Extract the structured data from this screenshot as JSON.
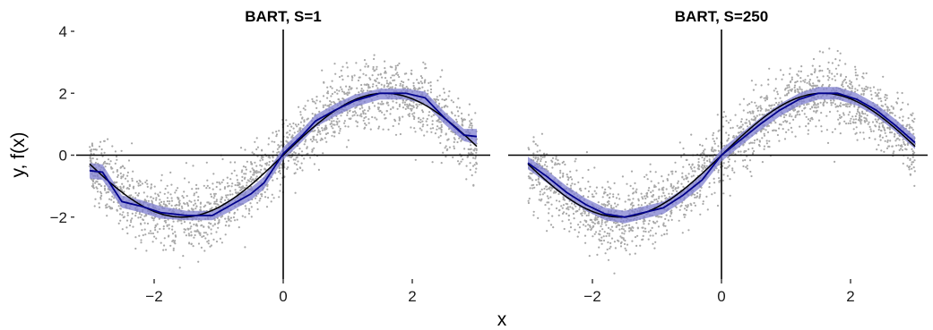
{
  "chart_data": [
    {
      "type": "scatter",
      "title": "BART, S=1",
      "xlabel": "x",
      "ylabel": "y, f(x)",
      "xlim": [
        -3,
        3
      ],
      "ylim": [
        -4,
        4
      ],
      "xticks": [
        -2,
        0,
        2
      ],
      "yticks": [
        -2,
        0,
        2,
        4
      ],
      "xtick_labels": [
        "−2",
        "0",
        "2"
      ],
      "ytick_labels": [
        "−2",
        "0",
        "2",
        "4"
      ],
      "grid": false,
      "reference_lines": {
        "x": 0,
        "y": 0
      },
      "colors": {
        "points": "#a8a8a8",
        "band": "#7f7fd0",
        "fit": "#00008b",
        "truth": "#000000",
        "axes": "#000000"
      },
      "series": [
        {
          "kind": "points",
          "x_range": [
            -3,
            3
          ],
          "approx_count": 2000,
          "noise_sd": 0.5,
          "centered_on": "sin(x)"
        },
        {
          "kind": "true-function",
          "formula": "sin(x)",
          "x": [
            -3,
            -2,
            -1,
            0,
            1,
            2,
            3
          ],
          "y": [
            -0.14,
            -0.91,
            -0.84,
            0,
            0.84,
            0.91,
            0.14
          ]
        },
        {
          "kind": "fit",
          "x": [
            -3,
            -2.8,
            -2.5,
            -2.2,
            -1.9,
            -1.5,
            -1.1,
            -0.8,
            -0.5,
            -0.3,
            0,
            0.3,
            0.5,
            0.8,
            1.1,
            1.5,
            1.9,
            2.2,
            2.5,
            2.8,
            3
          ],
          "y": [
            -0.5,
            -0.55,
            -1.5,
            -1.65,
            -1.85,
            -1.95,
            -1.95,
            -1.6,
            -1.25,
            -0.9,
            0.05,
            0.65,
            1.1,
            1.45,
            1.75,
            2.0,
            2.0,
            1.85,
            1.2,
            0.65,
            0.6
          ]
        },
        {
          "kind": "band",
          "x": [
            -3,
            -2.8,
            -2.5,
            -2.2,
            -1.9,
            -1.5,
            -1.1,
            -0.8,
            -0.5,
            -0.3,
            0,
            0.3,
            0.5,
            0.8,
            1.1,
            1.5,
            1.9,
            2.2,
            2.5,
            2.8,
            3
          ],
          "lower": [
            -0.75,
            -0.8,
            -1.7,
            -1.85,
            -2.05,
            -2.1,
            -2.1,
            -1.8,
            -1.45,
            -1.1,
            -0.15,
            0.45,
            0.9,
            1.25,
            1.55,
            1.8,
            1.8,
            1.65,
            1.0,
            0.45,
            0.35
          ],
          "upper": [
            -0.25,
            -0.3,
            -1.3,
            -1.45,
            -1.65,
            -1.8,
            -1.8,
            -1.4,
            -1.05,
            -0.7,
            0.25,
            0.85,
            1.3,
            1.65,
            1.95,
            2.15,
            2.15,
            2.05,
            1.4,
            0.85,
            0.85
          ]
        }
      ]
    },
    {
      "type": "scatter",
      "title": "BART, S=250",
      "xlabel": "x",
      "ylabel": "y, f(x)",
      "xlim": [
        -3,
        3
      ],
      "ylim": [
        -4,
        4
      ],
      "xticks": [
        -2,
        0,
        2
      ],
      "yticks": [
        -2,
        0,
        2,
        4
      ],
      "xtick_labels": [
        "−2",
        "0",
        "2"
      ],
      "ytick_labels": [
        "−2",
        "0",
        "2",
        "4"
      ],
      "grid": false,
      "reference_lines": {
        "x": 0,
        "y": 0
      },
      "colors": {
        "points": "#a8a8a8",
        "band": "#7f7fd0",
        "fit": "#00008b",
        "truth": "#000000",
        "axes": "#000000"
      },
      "series": [
        {
          "kind": "points",
          "x_range": [
            -3,
            3
          ],
          "approx_count": 2000,
          "noise_sd": 0.5,
          "centered_on": "sin(x)"
        },
        {
          "kind": "true-function",
          "formula": "sin(x)",
          "x": [
            -3,
            -2,
            -1,
            0,
            1,
            2,
            3
          ],
          "y": [
            -0.14,
            -0.91,
            -0.84,
            0,
            0.84,
            0.91,
            0.14
          ]
        },
        {
          "kind": "fit",
          "x": [
            -3,
            -2.7,
            -2.4,
            -2.1,
            -1.8,
            -1.5,
            -1.2,
            -0.9,
            -0.6,
            -0.3,
            0,
            0.3,
            0.6,
            0.9,
            1.2,
            1.5,
            1.8,
            2.1,
            2.4,
            2.7,
            3
          ],
          "y": [
            -0.25,
            -0.7,
            -1.2,
            -1.6,
            -1.9,
            -2.0,
            -1.85,
            -1.7,
            -1.3,
            -0.8,
            0.0,
            0.5,
            1.0,
            1.45,
            1.8,
            2.0,
            2.0,
            1.8,
            1.45,
            0.95,
            0.4
          ]
        },
        {
          "kind": "band",
          "x": [
            -3,
            -2.7,
            -2.4,
            -2.1,
            -1.8,
            -1.5,
            -1.2,
            -0.9,
            -0.6,
            -0.3,
            0,
            0.3,
            0.6,
            0.9,
            1.2,
            1.5,
            1.8,
            2.1,
            2.4,
            2.7,
            3
          ],
          "lower": [
            -0.45,
            -0.9,
            -1.4,
            -1.8,
            -2.1,
            -2.2,
            -2.05,
            -1.9,
            -1.5,
            -1.0,
            -0.2,
            0.3,
            0.8,
            1.25,
            1.6,
            1.8,
            1.8,
            1.6,
            1.25,
            0.75,
            0.2
          ],
          "upper": [
            -0.05,
            -0.5,
            -1.0,
            -1.4,
            -1.7,
            -1.8,
            -1.65,
            -1.5,
            -1.1,
            -0.6,
            0.2,
            0.7,
            1.2,
            1.65,
            2.0,
            2.2,
            2.2,
            2.0,
            1.65,
            1.15,
            0.6
          ]
        }
      ]
    }
  ]
}
